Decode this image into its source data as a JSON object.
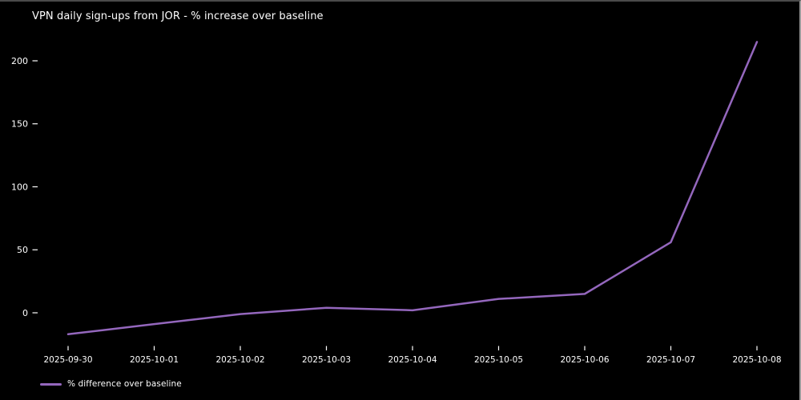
{
  "window": {
    "background": "#000000",
    "top_border_color": "#4a4a4a",
    "right_border_color": "#999999",
    "text_color": "#ffffff"
  },
  "chart_data": {
    "type": "line",
    "title": "VPN daily sign-ups from JOR - % increase over baseline",
    "xlabel": "",
    "ylabel": "",
    "categories": [
      "2025-09-30",
      "2025-10-01",
      "2025-10-02",
      "2025-10-03",
      "2025-10-04",
      "2025-10-05",
      "2025-10-06",
      "2025-10-07",
      "2025-10-08"
    ],
    "series": [
      {
        "name": "% difference over baseline",
        "color": "#9467bd",
        "values": [
          -17,
          -9,
          -1,
          4,
          2,
          11,
          15,
          56,
          215
        ]
      }
    ],
    "yticks": [
      0,
      50,
      100,
      150,
      200
    ],
    "ylim": [
      -30,
      230
    ],
    "grid": false,
    "spines": false,
    "legend_position": "lower-left-outside",
    "background": "#000000",
    "text_color": "#ffffff"
  }
}
